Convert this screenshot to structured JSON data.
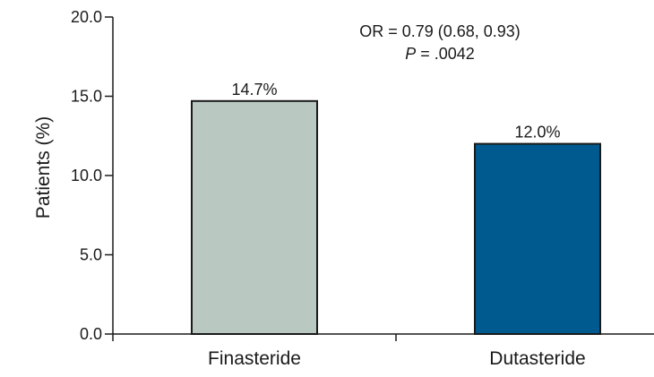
{
  "chart_data": {
    "type": "bar",
    "categories": [
      "Finasteride",
      "Dutasteride"
    ],
    "values": [
      14.7,
      12.0
    ],
    "data_labels": [
      "14.7%",
      "12.0%"
    ],
    "colors": [
      "#b9c9c2",
      "#005a8f"
    ],
    "ylabel": "Patients (%)",
    "xlabel": "",
    "ylim": [
      0,
      20
    ],
    "yticks": [
      0,
      5,
      10,
      15,
      20
    ],
    "ytick_labels": [
      "0.0",
      "5.0",
      "10.0",
      "15.0",
      "20.0"
    ],
    "grid": false,
    "annotation": {
      "line1": "OR = 0.79 (0.68, 0.93)",
      "line2_italic": "P",
      "line2_rest": " = .0042"
    }
  }
}
